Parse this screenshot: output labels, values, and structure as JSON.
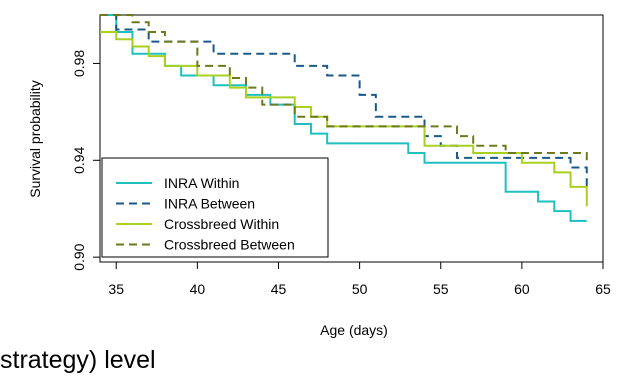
{
  "caption": "strategy) level",
  "chart_data": {
    "type": "line",
    "step": true,
    "xlabel": "Age (days)",
    "ylabel": "Survival probability",
    "xlim": [
      34,
      65
    ],
    "ylim": [
      0.898,
      1.0
    ],
    "xticks": [
      35,
      40,
      45,
      50,
      55,
      60,
      65
    ],
    "yticks": [
      0.9,
      0.94,
      0.98
    ],
    "ytick_labels": [
      "0.90",
      "0.94",
      "0.98"
    ],
    "grid": false,
    "legend_position": "bottom-left",
    "series": [
      {
        "name": "INRA Within",
        "color": "#1fbfbf",
        "dash": "solid",
        "x": [
          34,
          35,
          36,
          38,
          39,
          41,
          43,
          44.5,
          46,
          47,
          48,
          53,
          54,
          59,
          61,
          62,
          63,
          64
        ],
        "y": [
          1.0,
          0.993,
          0.984,
          0.979,
          0.975,
          0.971,
          0.967,
          0.963,
          0.955,
          0.951,
          0.947,
          0.943,
          0.939,
          0.927,
          0.923,
          0.919,
          0.915,
          0.915
        ]
      },
      {
        "name": "INRA Between",
        "color": "#1a5a8a",
        "dash": "dashed",
        "x": [
          34,
          35,
          37,
          39,
          41,
          46,
          48,
          50,
          51,
          54,
          55,
          56,
          57,
          59,
          63,
          64
        ],
        "y": [
          1.0,
          0.994,
          0.989,
          0.989,
          0.984,
          0.979,
          0.975,
          0.967,
          0.958,
          0.95,
          0.946,
          0.941,
          0.941,
          0.941,
          0.937,
          0.929
        ]
      },
      {
        "name": "Crossbreed Within",
        "color": "#a8d020",
        "dash": "solid",
        "x": [
          34,
          35,
          36,
          37,
          38,
          40,
          42,
          43,
          45,
          46,
          47,
          48,
          49,
          54,
          57,
          60,
          62,
          63,
          64
        ],
        "y": [
          0.993,
          0.99,
          0.987,
          0.983,
          0.979,
          0.975,
          0.97,
          0.966,
          0.966,
          0.962,
          0.958,
          0.954,
          0.954,
          0.946,
          0.943,
          0.939,
          0.935,
          0.929,
          0.921
        ]
      },
      {
        "name": "Crossbreed Between",
        "color": "#6b7a1a",
        "dash": "dashed",
        "x": [
          34,
          36,
          37,
          38,
          40,
          42,
          43,
          44,
          46,
          48,
          50,
          55,
          56,
          57,
          59,
          64
        ],
        "y": [
          1.0,
          0.997,
          0.993,
          0.989,
          0.979,
          0.974,
          0.97,
          0.963,
          0.958,
          0.954,
          0.954,
          0.954,
          0.95,
          0.946,
          0.943,
          0.939
        ]
      }
    ]
  }
}
